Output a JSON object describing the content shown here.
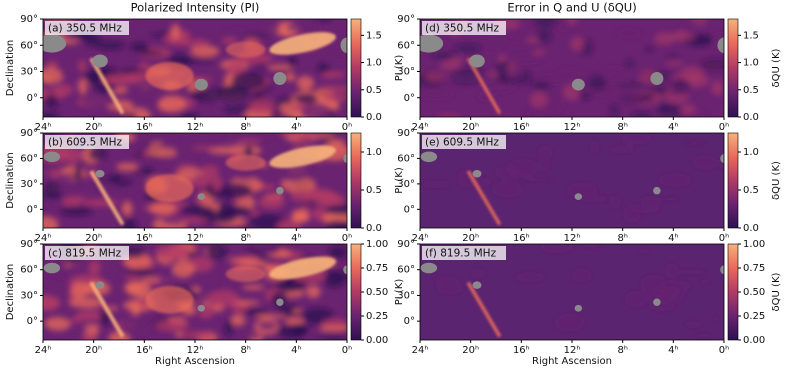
{
  "chart_data": [
    {
      "type": "heatmap",
      "title": "Polarized Intensity (PI)",
      "label": "(a) 350.5 MHz",
      "ylabel": "Declination",
      "xlim": [
        24,
        0
      ],
      "xticks": [
        {
          "value": 24,
          "label": "24ʰ"
        },
        {
          "value": 20,
          "label": "20ʰ"
        },
        {
          "value": 16,
          "label": "16ʰ"
        },
        {
          "value": 12,
          "label": "12ʰ"
        },
        {
          "value": 8,
          "label": "8ʰ"
        },
        {
          "value": 4,
          "label": "4ʰ"
        },
        {
          "value": 0,
          "label": "0ʰ"
        }
      ],
      "ylim": [
        -22,
        90
      ],
      "yticks": [
        {
          "value": 0,
          "label": "0°"
        },
        {
          "value": 30,
          "label": "30°"
        },
        {
          "value": 60,
          "label": "60°"
        },
        {
          "value": 90,
          "label": "90°"
        }
      ],
      "colorbar_label": "PI (K)",
      "clim": [
        0,
        1.8
      ],
      "cticks": [
        {
          "value": 0,
          "label": "0.0"
        },
        {
          "value": 0.5,
          "label": "0.5"
        },
        {
          "value": 1,
          "label": "1.0"
        },
        {
          "value": 1.5,
          "label": "1.5"
        }
      ],
      "colormap": [
        "#2d1152",
        "#6a2370",
        "#b13a66",
        "#e86a5a",
        "#f7b17c"
      ]
    },
    {
      "type": "heatmap",
      "label": "(b) 609.5 MHz",
      "ylabel": "Declination",
      "xlim": [
        24,
        0
      ],
      "xticks": [
        {
          "value": 24,
          "label": "24ʰ"
        },
        {
          "value": 20,
          "label": "20ʰ"
        },
        {
          "value": 16,
          "label": "16ʰ"
        },
        {
          "value": 12,
          "label": "12ʰ"
        },
        {
          "value": 8,
          "label": "8ʰ"
        },
        {
          "value": 4,
          "label": "4ʰ"
        },
        {
          "value": 0,
          "label": "0ʰ"
        }
      ],
      "ylim": [
        -22,
        90
      ],
      "yticks": [
        {
          "value": 0,
          "label": "0°"
        },
        {
          "value": 30,
          "label": "30°"
        },
        {
          "value": 60,
          "label": "60°"
        },
        {
          "value": 90,
          "label": "90°"
        }
      ],
      "colorbar_label": "PI (K)",
      "clim": [
        0,
        1.25
      ],
      "cticks": [
        {
          "value": 0,
          "label": "0.0"
        },
        {
          "value": 0.5,
          "label": "0.5"
        },
        {
          "value": 1,
          "label": "1.0"
        }
      ],
      "colormap": [
        "#2d1152",
        "#6a2370",
        "#b13a66",
        "#e86a5a",
        "#f7b17c"
      ]
    },
    {
      "type": "heatmap",
      "label": "(c) 819.5 MHz",
      "ylabel": "Declination",
      "xlabel": "Right Ascension",
      "xlim": [
        24,
        0
      ],
      "xticks": [
        {
          "value": 24,
          "label": "24ʰ"
        },
        {
          "value": 20,
          "label": "20ʰ"
        },
        {
          "value": 16,
          "label": "16ʰ"
        },
        {
          "value": 12,
          "label": "12ʰ"
        },
        {
          "value": 8,
          "label": "8ʰ"
        },
        {
          "value": 4,
          "label": "4ʰ"
        },
        {
          "value": 0,
          "label": "0ʰ"
        }
      ],
      "ylim": [
        -22,
        90
      ],
      "yticks": [
        {
          "value": 0,
          "label": "0°"
        },
        {
          "value": 30,
          "label": "30°"
        },
        {
          "value": 60,
          "label": "60°"
        },
        {
          "value": 90,
          "label": "90°"
        }
      ],
      "colorbar_label": "PI (K)",
      "clim": [
        0,
        1
      ],
      "cticks": [
        {
          "value": 0,
          "label": "0.00"
        },
        {
          "value": 0.25,
          "label": "0.25"
        },
        {
          "value": 0.5,
          "label": "0.50"
        },
        {
          "value": 0.75,
          "label": "0.75"
        },
        {
          "value": 1,
          "label": "1.00"
        }
      ],
      "colormap": [
        "#2d1152",
        "#6a2370",
        "#b13a66",
        "#e86a5a",
        "#f7b17c"
      ]
    },
    {
      "type": "heatmap",
      "title": "Error in Q and U (δQU)",
      "label": "(d) 350.5 MHz",
      "xlim": [
        24,
        0
      ],
      "xticks": [
        {
          "value": 24,
          "label": "24ʰ"
        },
        {
          "value": 20,
          "label": "20ʰ"
        },
        {
          "value": 16,
          "label": "16ʰ"
        },
        {
          "value": 12,
          "label": "12ʰ"
        },
        {
          "value": 8,
          "label": "8ʰ"
        },
        {
          "value": 4,
          "label": "4ʰ"
        },
        {
          "value": 0,
          "label": "0ʰ"
        }
      ],
      "ylim": [
        -22,
        90
      ],
      "yticks": [
        {
          "value": 0,
          "label": "0°"
        },
        {
          "value": 30,
          "label": "30°"
        },
        {
          "value": 60,
          "label": "60°"
        },
        {
          "value": 90,
          "label": "90°"
        }
      ],
      "colorbar_label": "δQU (K)",
      "clim": [
        0,
        1.8
      ],
      "cticks": [
        {
          "value": 0,
          "label": "0.0"
        },
        {
          "value": 0.5,
          "label": "0.5"
        },
        {
          "value": 1,
          "label": "1.0"
        },
        {
          "value": 1.5,
          "label": "1.5"
        }
      ],
      "colormap": [
        "#2d1152",
        "#6a2370",
        "#b13a66",
        "#e86a5a",
        "#f7b17c"
      ]
    },
    {
      "type": "heatmap",
      "label": "(e) 609.5 MHz",
      "xlim": [
        24,
        0
      ],
      "xticks": [
        {
          "value": 24,
          "label": "24ʰ"
        },
        {
          "value": 20,
          "label": "20ʰ"
        },
        {
          "value": 16,
          "label": "16ʰ"
        },
        {
          "value": 12,
          "label": "12ʰ"
        },
        {
          "value": 8,
          "label": "8ʰ"
        },
        {
          "value": 4,
          "label": "4ʰ"
        },
        {
          "value": 0,
          "label": "0ʰ"
        }
      ],
      "ylim": [
        -22,
        90
      ],
      "yticks": [
        {
          "value": 0,
          "label": "0°"
        },
        {
          "value": 30,
          "label": "30°"
        },
        {
          "value": 60,
          "label": "60°"
        },
        {
          "value": 90,
          "label": "90°"
        }
      ],
      "colorbar_label": "δQU (K)",
      "clim": [
        0,
        1.25
      ],
      "cticks": [
        {
          "value": 0,
          "label": "0.0"
        },
        {
          "value": 0.5,
          "label": "0.5"
        },
        {
          "value": 1,
          "label": "1.0"
        }
      ],
      "colormap": [
        "#2d1152",
        "#6a2370",
        "#b13a66",
        "#e86a5a",
        "#f7b17c"
      ]
    },
    {
      "type": "heatmap",
      "label": "(f) 819.5 MHz",
      "xlabel": "Right Ascension",
      "xlim": [
        24,
        0
      ],
      "xticks": [
        {
          "value": 24,
          "label": "24ʰ"
        },
        {
          "value": 20,
          "label": "20ʰ"
        },
        {
          "value": 16,
          "label": "16ʰ"
        },
        {
          "value": 12,
          "label": "12ʰ"
        },
        {
          "value": 8,
          "label": "8ʰ"
        },
        {
          "value": 4,
          "label": "4ʰ"
        },
        {
          "value": 0,
          "label": "0ʰ"
        }
      ],
      "ylim": [
        -22,
        90
      ],
      "yticks": [
        {
          "value": 0,
          "label": "0°"
        },
        {
          "value": 30,
          "label": "30°"
        },
        {
          "value": 60,
          "label": "60°"
        },
        {
          "value": 90,
          "label": "90°"
        }
      ],
      "colorbar_label": "δQU (K)",
      "clim": [
        0,
        1
      ],
      "cticks": [
        {
          "value": 0,
          "label": "0.00"
        },
        {
          "value": 0.25,
          "label": "0.25"
        },
        {
          "value": 0.5,
          "label": "0.50"
        },
        {
          "value": 0.75,
          "label": "0.75"
        },
        {
          "value": 1,
          "label": "1.00"
        }
      ],
      "colormap": [
        "#2d1152",
        "#6a2370",
        "#b13a66",
        "#e86a5a",
        "#f7b17c"
      ]
    }
  ]
}
